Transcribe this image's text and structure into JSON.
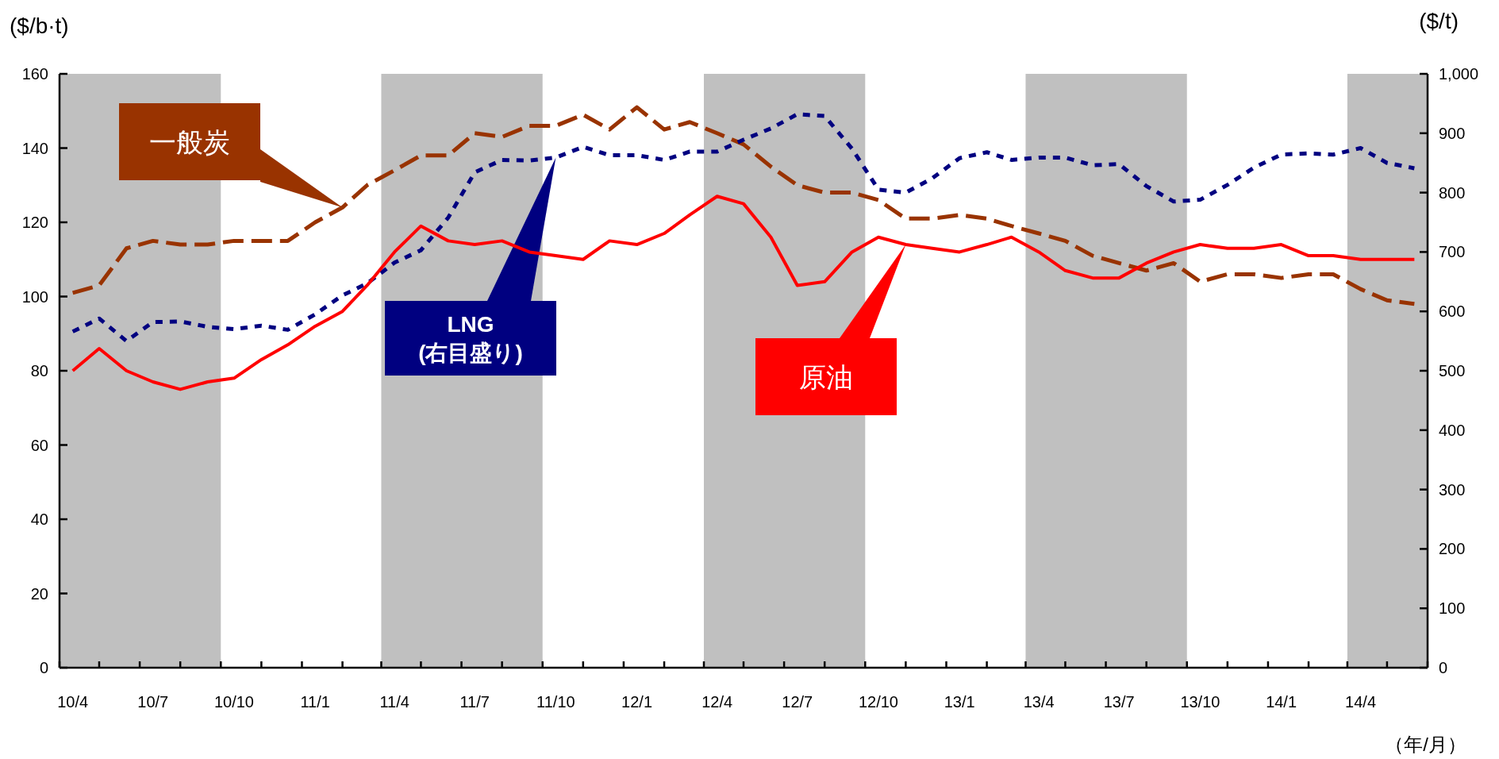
{
  "chart_data": {
    "type": "line",
    "ylabel": "($/b·t)",
    "y2label": "($/t)",
    "xlabel": "（年/月）",
    "x": [
      "2010-04-16",
      "2010-05-16",
      "2010-06-16",
      "2010-07-16",
      "2010-08-16",
      "2010-09-16",
      "2010-10-16",
      "2010-11-16",
      "2010-12-16",
      "2011-01-16",
      "2011-02-16",
      "2011-03-16",
      "2011-04-16",
      "2011-05-16",
      "2011-06-16",
      "2011-07-16",
      "2011-08-16",
      "2011-09-16",
      "2011-10-16",
      "2011-11-16",
      "2011-12-16",
      "2012-01-16",
      "2012-02-16",
      "2012-03-16",
      "2012-04-16",
      "2012-05-16",
      "2012-06-16",
      "2012-07-16",
      "2012-08-16",
      "2012-09-16",
      "2012-10-16",
      "2012-11-16",
      "2012-12-16",
      "2013-01-16",
      "2013-02-16",
      "2013-03-16",
      "2013-04-16",
      "2013-05-16",
      "2013-06-16",
      "2013-07-16",
      "2013-08-16",
      "2013-09-16",
      "2013-10-16",
      "2013-11-16",
      "2013-12-16",
      "2014-01-16",
      "2014-02-16",
      "2014-03-16",
      "2014-04-16",
      "2014-05-16",
      "2014-06-16"
    ],
    "series": [
      {
        "name": "一般炭",
        "color": "#993300",
        "line_style": "dashed",
        "values": [
          101,
          103,
          113,
          115,
          114,
          114,
          115,
          115,
          115,
          120,
          124,
          130,
          134,
          138,
          138,
          144,
          143,
          146,
          146,
          149,
          145,
          151,
          145,
          147,
          144,
          141,
          135,
          130,
          128,
          128,
          126,
          121,
          121,
          122,
          121,
          119,
          117,
          115,
          111,
          109,
          107,
          109,
          104,
          106,
          106,
          105,
          106,
          106,
          102,
          99,
          98
        ]
      },
      {
        "name": "LNG\n(右目盛り)",
        "color": "#000080",
        "line_style": "dotted",
        "axis": "y2",
        "values": [
          566,
          588,
          550,
          582,
          583,
          574,
          570,
          576,
          569,
          595,
          627,
          647,
          682,
          703,
          758,
          834,
          855,
          854,
          859,
          877,
          863,
          863,
          855,
          869,
          869,
          889,
          908,
          932,
          929,
          874,
          805,
          800,
          824,
          858,
          868,
          855,
          859,
          859,
          846,
          848,
          811,
          785,
          788,
          813,
          842,
          864,
          866,
          864,
          875,
          850,
          841
        ]
      },
      {
        "name": "原油",
        "color": "#ff0000",
        "line_style": "solid",
        "values": [
          80,
          86,
          80,
          77,
          75,
          77,
          78,
          83,
          87,
          92,
          96,
          103,
          112,
          119,
          115,
          114,
          115,
          112,
          111,
          110,
          115,
          114,
          117,
          122,
          127,
          125,
          116,
          103,
          104,
          112,
          116,
          114,
          113,
          112,
          114,
          116,
          112,
          107,
          105,
          105,
          109,
          112,
          114,
          113,
          113,
          114,
          111,
          111,
          110,
          110,
          110
        ]
      }
    ],
    "xlim": [
      "2010-04-01",
      "2014-07-01"
    ],
    "xticks": [
      {
        "value": "2010-04-16",
        "label": "10/4"
      },
      {
        "value": "2010-07-16",
        "label": "10/7"
      },
      {
        "value": "2010-10-16",
        "label": "10/10"
      },
      {
        "value": "2011-01-16",
        "label": "11/1"
      },
      {
        "value": "2011-04-16",
        "label": "11/4"
      },
      {
        "value": "2011-07-16",
        "label": "11/7"
      },
      {
        "value": "2011-10-16",
        "label": "11/10"
      },
      {
        "value": "2012-01-16",
        "label": "12/1"
      },
      {
        "value": "2012-04-16",
        "label": "12/4"
      },
      {
        "value": "2012-07-16",
        "label": "12/7"
      },
      {
        "value": "2012-10-16",
        "label": "12/10"
      },
      {
        "value": "2013-01-16",
        "label": "13/1"
      },
      {
        "value": "2013-04-16",
        "label": "13/4"
      },
      {
        "value": "2013-07-16",
        "label": "13/7"
      },
      {
        "value": "2013-10-16",
        "label": "13/10"
      },
      {
        "value": "2014-01-16",
        "label": "14/1"
      },
      {
        "value": "2014-04-16",
        "label": "14/4"
      },
      {
        "value": "2010-04-01",
        "label": null
      },
      {
        "value": "2010-05-16",
        "label": null
      },
      {
        "value": "2010-07-01",
        "label": null
      },
      {
        "value": "2010-08-16",
        "label": null
      },
      {
        "value": "2010-10-01",
        "label": null
      },
      {
        "value": "2010-11-16",
        "label": null
      },
      {
        "value": "2011-01-01",
        "label": null
      },
      {
        "value": "2011-02-16",
        "label": null
      },
      {
        "value": "2011-04-01",
        "label": null
      },
      {
        "value": "2011-05-16",
        "label": null
      },
      {
        "value": "2011-07-01",
        "label": null
      },
      {
        "value": "2011-08-16",
        "label": null
      },
      {
        "value": "2011-10-01",
        "label": null
      },
      {
        "value": "2011-11-16",
        "label": null
      },
      {
        "value": "2012-01-01",
        "label": null
      },
      {
        "value": "2012-02-16",
        "label": null
      },
      {
        "value": "2012-04-01",
        "label": null
      },
      {
        "value": "2012-05-16",
        "label": null
      },
      {
        "value": "2012-07-01",
        "label": null
      },
      {
        "value": "2012-08-16",
        "label": null
      },
      {
        "value": "2012-10-01",
        "label": null
      },
      {
        "value": "2012-11-16",
        "label": null
      },
      {
        "value": "2013-01-01",
        "label": null
      },
      {
        "value": "2013-02-16",
        "label": null
      },
      {
        "value": "2013-04-01",
        "label": null
      },
      {
        "value": "2013-05-16",
        "label": null
      },
      {
        "value": "2013-07-01",
        "label": null
      },
      {
        "value": "2013-08-16",
        "label": null
      },
      {
        "value": "2013-10-01",
        "label": null
      },
      {
        "value": "2013-11-16",
        "label": null
      },
      {
        "value": "2014-01-01",
        "label": null
      },
      {
        "value": "2014-02-16",
        "label": null
      },
      {
        "value": "2014-04-01",
        "label": null
      },
      {
        "value": "2014-05-16",
        "label": null
      },
      {
        "value": "2014-07-01",
        "label": null
      }
    ],
    "ylim": [
      0,
      160
    ],
    "yticks": [
      0,
      20,
      40,
      60,
      80,
      100,
      120,
      140,
      160
    ],
    "y2lim": [
      0,
      1000
    ],
    "y2ticks": [
      0,
      100,
      200,
      300,
      400,
      500,
      600,
      700,
      800,
      900,
      {
        "value": 1000,
        "label": "1,000"
      }
    ],
    "bands": [
      {
        "axis": "x",
        "from": "2010-04-01",
        "to": "2010-10-01",
        "color": "#c0c0c0"
      },
      {
        "axis": "x",
        "from": "2011-04-01",
        "to": "2011-10-01",
        "color": "#c0c0c0"
      },
      {
        "axis": "x",
        "from": "2012-04-01",
        "to": "2012-10-01",
        "color": "#c0c0c0"
      },
      {
        "axis": "x",
        "from": "2013-04-01",
        "to": "2013-10-01",
        "color": "#c0c0c0"
      },
      {
        "axis": "x",
        "from": "2014-04-01",
        "to": "2014-07-01",
        "color": "#c0c0c0"
      }
    ]
  }
}
